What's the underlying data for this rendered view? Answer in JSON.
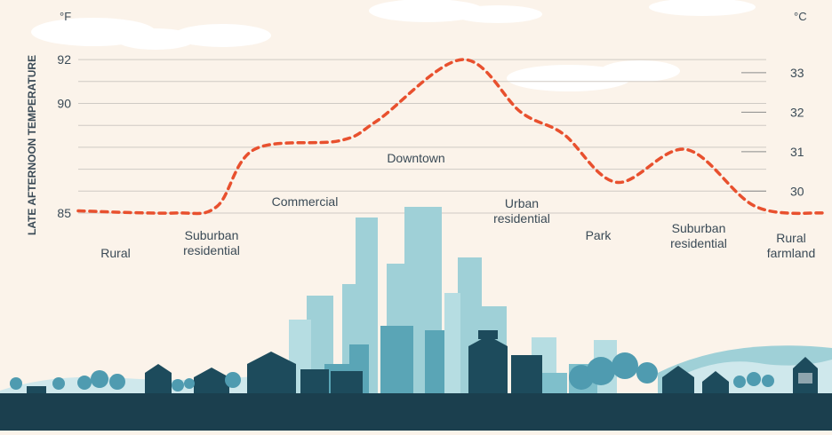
{
  "chart_data": {
    "type": "line",
    "title": "",
    "ylabel": "LATE AFTERNOON TEMPERATURE",
    "y_unit_left": "°F",
    "y_unit_right": "°C",
    "left_ticks": [
      85,
      90,
      92
    ],
    "right_ticks": [
      30,
      31,
      32,
      33
    ],
    "ylim_f": [
      85,
      92.3
    ],
    "grid": true,
    "categories": [
      "Rural",
      "Suburban residential",
      "Commercial",
      "Downtown",
      "Urban residential",
      "Park",
      "Suburban residential",
      "Rural farmland"
    ],
    "series": [
      {
        "values": [
          85.1,
          85.0,
          85.3,
          87.9,
          88.3,
          89.2,
          92.0,
          89.6,
          88.6,
          86.4,
          87.9,
          85.3,
          85.0
        ],
        "x": [
          0,
          0.9,
          1.3,
          1.65,
          2.45,
          2.8,
          3.6,
          4.15,
          4.55,
          5.05,
          5.7,
          6.35,
          7.0
        ]
      }
    ],
    "line_color": "#e8502e",
    "line_style": "dashed"
  },
  "colors": {
    "background": "#fbf3ea",
    "gridline": "#cfcac4",
    "text": "#3a4a56",
    "building_light": "#9fd0d7",
    "building_mid": "#5aa5b6",
    "building_dark": "#1d4b5c",
    "ground": "#1b3f4e",
    "cloud": "#ffffff"
  },
  "illustration": "city-skyline-icon"
}
